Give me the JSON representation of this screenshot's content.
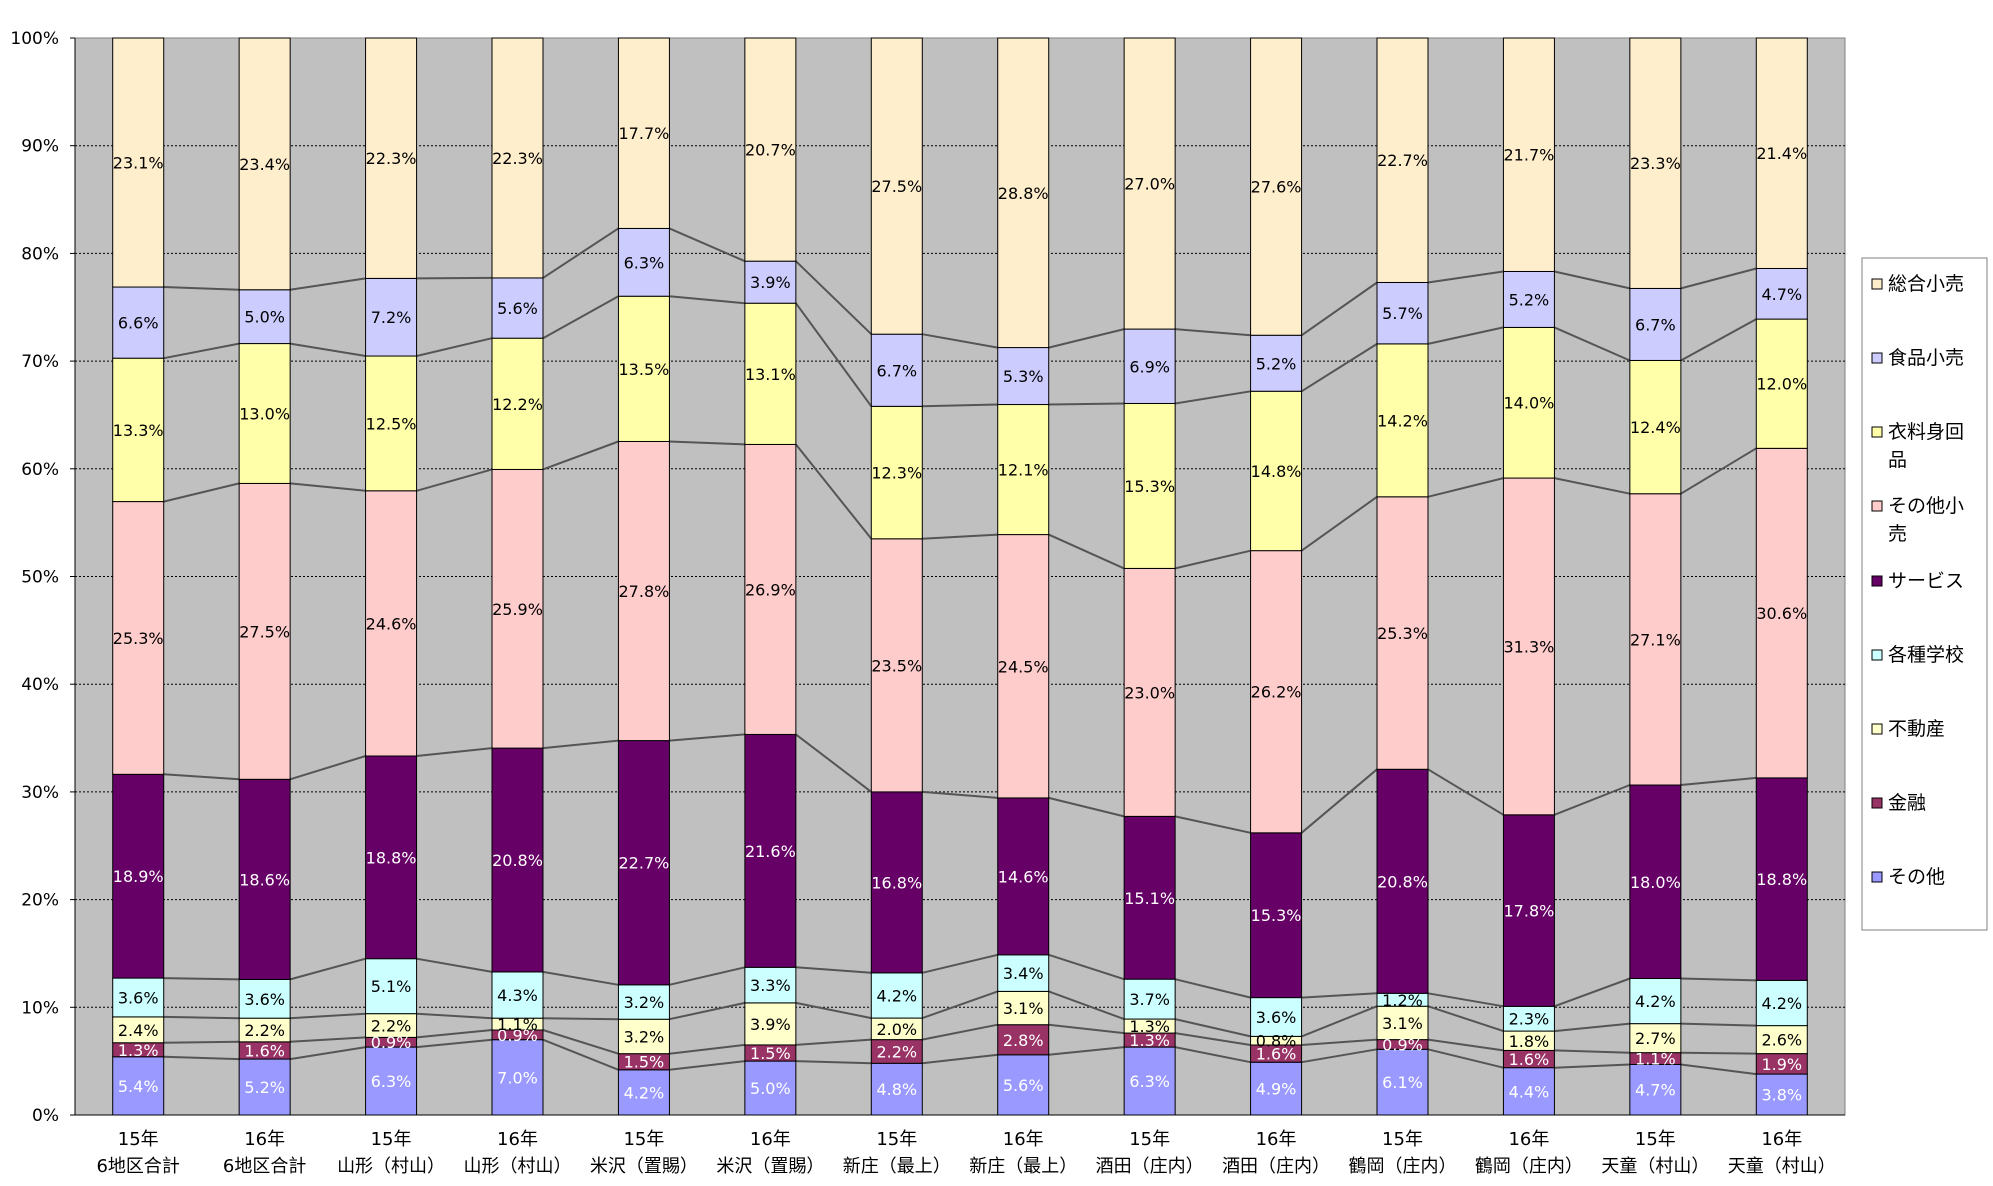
{
  "chart_data": {
    "type": "bar",
    "stacked": true,
    "normalized": true,
    "categories": [
      "15年\n6地区合計",
      "16年\n6地区合計",
      "15年\n山形（村山）",
      "16年\n山形（村山）",
      "15年\n米沢（置賜）",
      "16年\n米沢（置賜）",
      "15年\n新庄（最上）",
      "16年\n新庄（最上）",
      "15年\n酒田（庄内）",
      "16年\n酒田（庄内）",
      "15年\n鶴岡（庄内）",
      "16年\n鶴岡（庄内）",
      "15年\n天童（村山）",
      "16年\n天童（村山）"
    ],
    "ylim": [
      0,
      100
    ],
    "yticks": [
      "0%",
      "10%",
      "20%",
      "30%",
      "40%",
      "50%",
      "60%",
      "70%",
      "80%",
      "90%",
      "100%"
    ],
    "grid": true,
    "legend_position": "right",
    "series": [
      {
        "name": "その他",
        "color": "#9999ff",
        "label_color": "#ffffff",
        "values": [
          5.4,
          5.2,
          6.3,
          7.0,
          4.2,
          5.0,
          4.8,
          5.6,
          6.3,
          4.9,
          6.1,
          4.4,
          4.7,
          3.8
        ]
      },
      {
        "name": "金融",
        "color": "#993366",
        "label_color": "#ffffff",
        "values": [
          1.3,
          1.6,
          0.9,
          0.9,
          1.5,
          1.5,
          2.2,
          2.8,
          1.3,
          1.6,
          0.9,
          1.6,
          1.1,
          1.9
        ]
      },
      {
        "name": "不動産",
        "color": "#ffffcc",
        "label_color": "#000000",
        "values": [
          2.4,
          2.2,
          2.2,
          1.1,
          3.2,
          3.9,
          2.0,
          3.1,
          1.3,
          0.8,
          3.1,
          1.8,
          2.7,
          2.6
        ]
      },
      {
        "name": "各種学校",
        "color": "#ccffff",
        "label_color": "#000000",
        "values": [
          3.6,
          3.6,
          5.1,
          4.3,
          3.2,
          3.3,
          4.2,
          3.4,
          3.7,
          3.6,
          1.2,
          2.3,
          4.2,
          4.2
        ]
      },
      {
        "name": "サービス",
        "color": "#660066",
        "label_color": "#ffffff",
        "values": [
          18.9,
          18.6,
          18.8,
          20.8,
          22.7,
          21.6,
          16.8,
          14.6,
          15.1,
          15.3,
          20.8,
          17.8,
          18.0,
          18.8
        ]
      },
      {
        "name": "その他小売",
        "color": "#ffcccc",
        "label_color": "#000000",
        "values": [
          25.3,
          27.5,
          24.6,
          25.9,
          27.8,
          26.9,
          23.5,
          24.5,
          23.0,
          26.2,
          25.3,
          31.3,
          27.1,
          30.6
        ]
      },
      {
        "name": "衣料身回品",
        "color": "#ffffaa",
        "label_color": "#000000",
        "values": [
          13.3,
          13.0,
          12.5,
          12.2,
          13.5,
          13.1,
          12.3,
          12.1,
          15.3,
          14.8,
          14.2,
          14.0,
          12.4,
          12.0
        ]
      },
      {
        "name": "食品小売",
        "color": "#ccccff",
        "label_color": "#000000",
        "values": [
          6.6,
          5.0,
          7.2,
          5.6,
          6.3,
          3.9,
          6.7,
          5.3,
          6.9,
          5.2,
          5.7,
          5.2,
          6.7,
          4.7
        ]
      },
      {
        "name": "総合小売",
        "color": "#ffeecc",
        "label_color": "#000000",
        "values": [
          23.1,
          23.4,
          22.3,
          22.3,
          17.7,
          20.7,
          27.5,
          28.8,
          27.0,
          27.6,
          22.7,
          21.7,
          23.3,
          21.4
        ]
      }
    ],
    "legend_order": [
      "総合小売",
      "食品小売",
      "衣料身回品",
      "その他小売",
      "サービス",
      "各種学校",
      "不動産",
      "金融",
      "その他"
    ],
    "legend_labels": [
      "総合小売",
      "食品小売",
      "衣料身回\n品",
      "その他小\n売",
      "サービス",
      "各種学校",
      "不動産",
      "金融",
      "その他"
    ],
    "plot_background": "#c0c0c0"
  }
}
